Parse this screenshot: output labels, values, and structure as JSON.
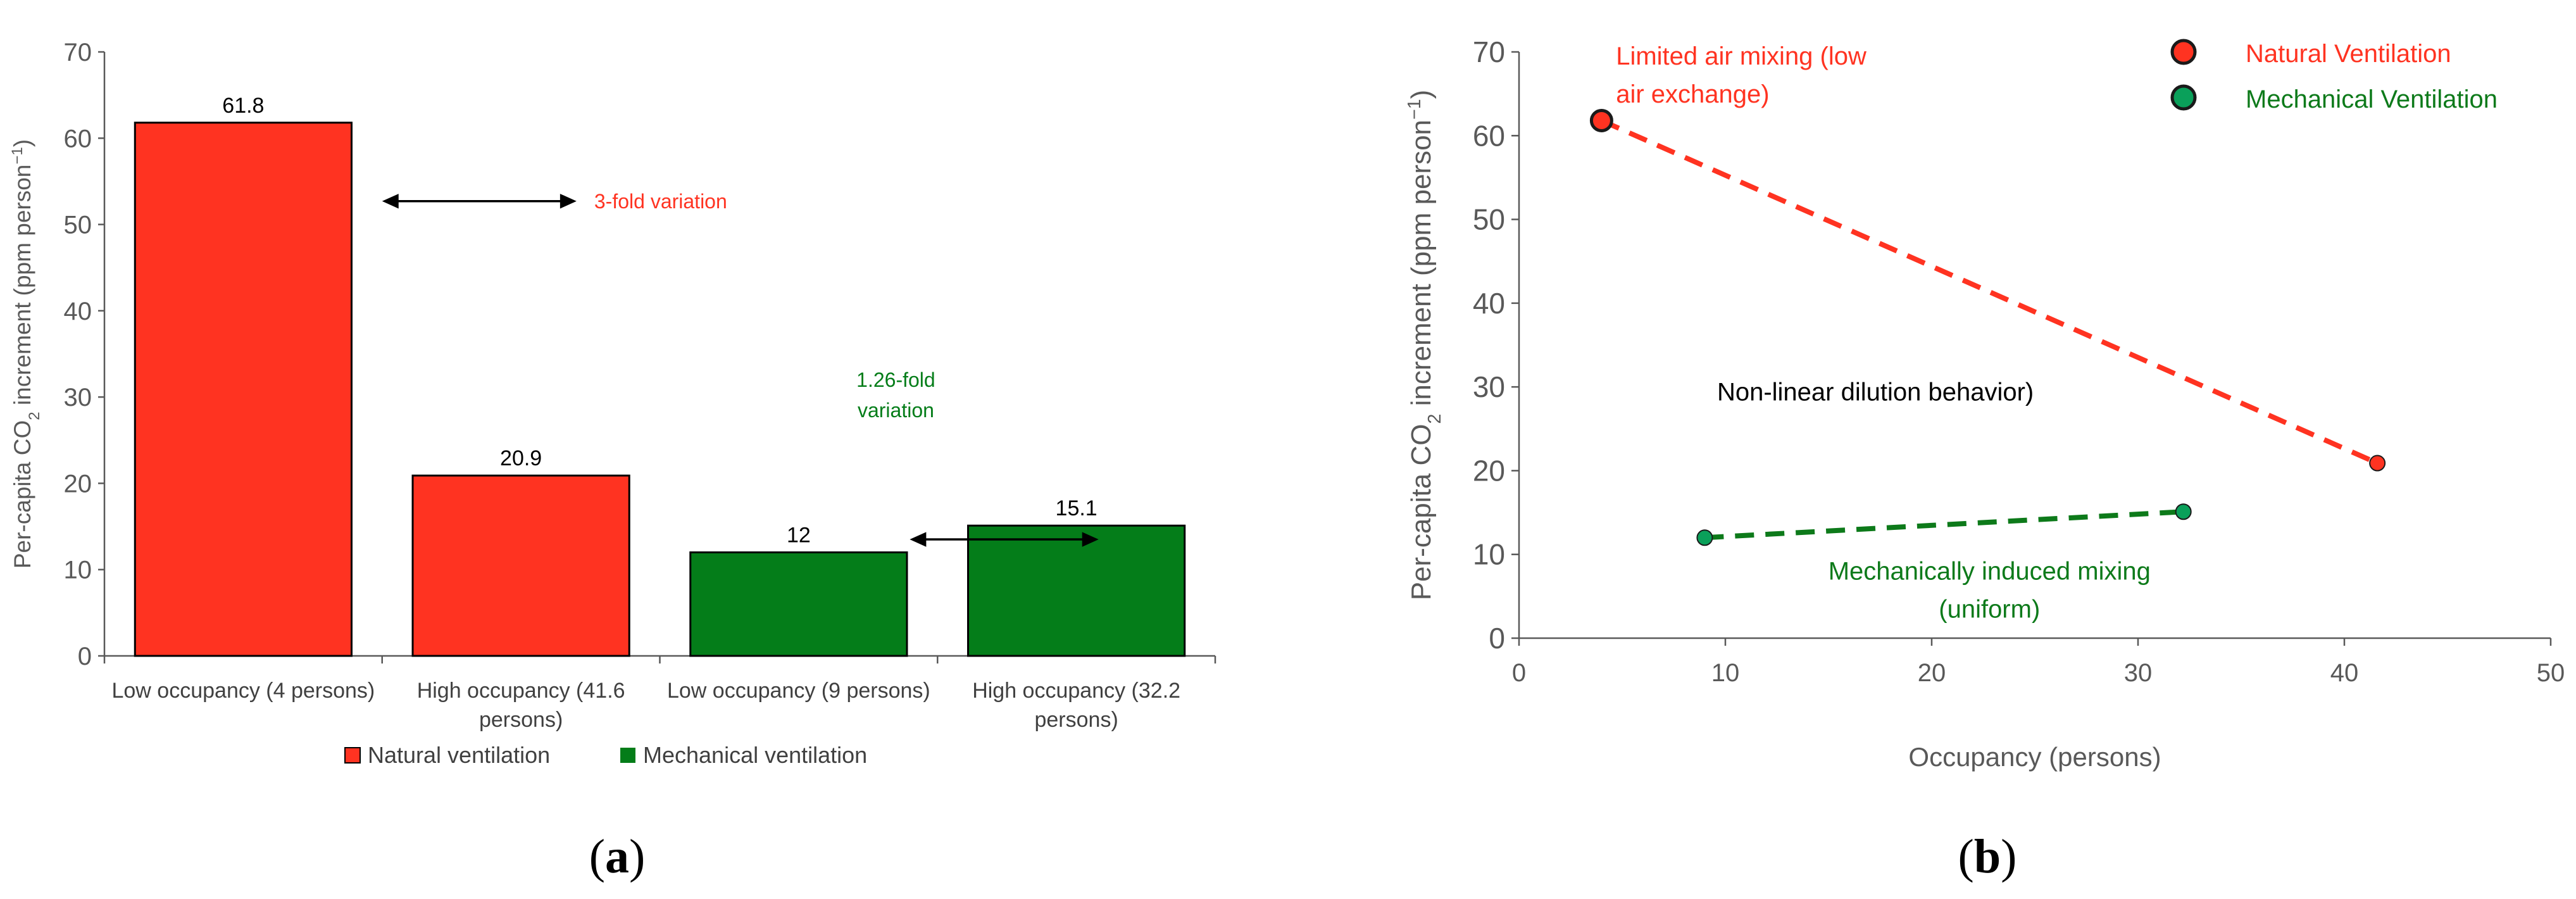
{
  "panels": [
    {
      "label": "a"
    },
    {
      "label": "b"
    }
  ],
  "chart_data": [
    {
      "type": "bar",
      "panel": "a",
      "ylabel_parts": [
        "Per-capita CO",
        "2",
        " increment (ppm person",
        "−1",
        ")"
      ],
      "ylim": [
        0,
        70
      ],
      "yticks": [
        0,
        10,
        20,
        30,
        40,
        50,
        60,
        70
      ],
      "categories": [
        [
          "Low occupancy (4 persons)"
        ],
        [
          "High occupancy (41.6",
          "persons)"
        ],
        [
          "Low occupancy (9 persons)"
        ],
        [
          "High occupancy (32.2",
          "persons)"
        ]
      ],
      "bars": [
        {
          "value": 61.8,
          "label": "61.8",
          "series": 0
        },
        {
          "value": 20.9,
          "label": "20.9",
          "series": 0
        },
        {
          "value": 12,
          "label": "12",
          "series": 1
        },
        {
          "value": 15.1,
          "label": "15.1",
          "series": 1
        }
      ],
      "series": [
        {
          "name": "Natural ventilation",
          "color": "#ff3321"
        },
        {
          "name": "Mechanical ventilation",
          "color": "#047d19"
        }
      ],
      "annotations": [
        {
          "lines": [
            "3-fold variation"
          ],
          "color": "#ff3321",
          "arrow_from_x": 0.5,
          "arrow_to_x": 1.2,
          "arrow_y": 52.7
        },
        {
          "lines": [
            "1.26-fold",
            "variation"
          ],
          "color": "#047d19",
          "arrow_from_x": 2.4,
          "arrow_to_x": 3.08,
          "arrow_y": 13.5
        }
      ],
      "legend": "bottom"
    },
    {
      "type": "scatter",
      "panel": "b",
      "ylabel_parts": [
        "Per-capita CO",
        "2",
        " increment (ppm person",
        "−1",
        ")"
      ],
      "xlabel": "Occupancy (persons)",
      "xlim": [
        0,
        50
      ],
      "ylim": [
        0,
        70
      ],
      "xticks": [
        0,
        10,
        20,
        30,
        40,
        50
      ],
      "yticks": [
        0,
        10,
        20,
        30,
        40,
        50,
        60,
        70
      ],
      "series": [
        {
          "name": "Natural Ventilation",
          "color": "#ff3321",
          "points": [
            {
              "x": 4,
              "y": 61.8
            },
            {
              "x": 41.6,
              "y": 20.9
            }
          ]
        },
        {
          "name": "Mechanical Ventilation",
          "color": "#0aa05a",
          "points": [
            {
              "x": 9,
              "y": 12
            },
            {
              "x": 32.2,
              "y": 15.1
            }
          ]
        }
      ],
      "line_colors": [
        "#ff3321",
        "#0d7a1a"
      ],
      "legend_text_colors": [
        "#ff3321",
        "#0d7a1a"
      ],
      "legend": "top-right",
      "annotations": [
        {
          "lines": [
            "Limited air mixing (low",
            "air exchange)"
          ],
          "color": "#ff3321",
          "x": 4.7,
          "y": 68.5
        },
        {
          "lines": [
            "Non-linear dilution behavior)"
          ],
          "color": "#000000",
          "x": 9.6,
          "y": 28.4
        },
        {
          "lines": [
            "Mechanically induced mixing",
            "(uniform)"
          ],
          "color": "#0d7a1a",
          "x": 22.8,
          "y": 7.0
        }
      ]
    }
  ]
}
